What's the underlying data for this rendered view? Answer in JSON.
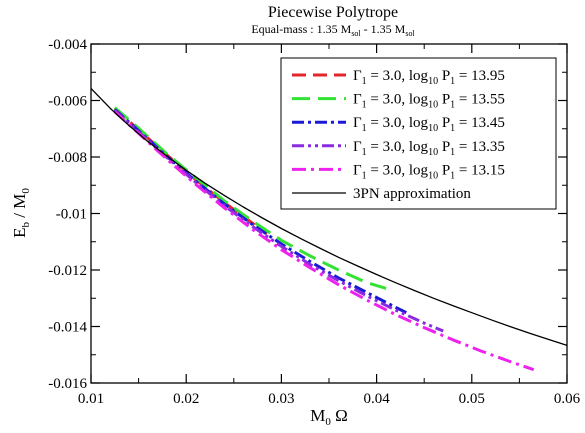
{
  "chart_data": {
    "type": "line",
    "title": "Piecewise Polytrope",
    "subtitle_prefix": "Equal-mass : 1.35 M",
    "subtitle_sub1": "sol",
    "subtitle_mid": " - 1.35 M",
    "subtitle_sub2": "sol",
    "xlabel_main": "M",
    "xlabel_sub": "0",
    "xlabel_tail": " Ω",
    "ylabel_main": "E",
    "ylabel_sub": "b",
    "ylabel_tail": " / M",
    "ylabel_sub2": "0",
    "xlim": [
      0.01,
      0.06
    ],
    "ylim": [
      -0.016,
      -0.004
    ],
    "xticks": [
      "0.01",
      "0.02",
      "0.03",
      "0.04",
      "0.05",
      "0.06"
    ],
    "yticks": [
      "-0.004",
      "-0.006",
      "-0.008",
      "-0.01",
      "-0.012",
      "-0.014",
      "-0.016"
    ],
    "xtick_values": [
      0.01,
      0.02,
      0.03,
      0.04,
      0.05,
      0.06
    ],
    "ytick_values": [
      -0.004,
      -0.006,
      -0.008,
      -0.01,
      -0.012,
      -0.014,
      -0.016
    ],
    "legend_position": "top-right",
    "series": [
      {
        "label_gamma": "Γ",
        "label_gamma_sub": "1",
        "label_mid": " = 3.0,  log",
        "label_log_sub": "10",
        "label_p": " P",
        "label_p_sub": "1",
        "label_value": " = 13.95",
        "color": "#e3262b",
        "dash": "14,7",
        "x": [
          0.0125,
          0.015,
          0.018,
          0.021,
          0.024,
          0.027,
          0.0285
        ],
        "y": [
          -0.00628,
          -0.00704,
          -0.00794,
          -0.0088,
          -0.00961,
          -0.01035,
          -0.01071
        ]
      },
      {
        "label_gamma": "Γ",
        "label_gamma_sub": "1",
        "label_mid": " = 3.0,  log",
        "label_log_sub": "10",
        "label_p": " P",
        "label_p_sub": "1",
        "label_value": " = 13.55",
        "color": "#33e333",
        "dash": "18,8",
        "x": [
          0.0125,
          0.015,
          0.018,
          0.021,
          0.024,
          0.027,
          0.03,
          0.033,
          0.036,
          0.039,
          0.041
        ],
        "y": [
          -0.00625,
          -0.00698,
          -0.0079,
          -0.00873,
          -0.00955,
          -0.01028,
          -0.01095,
          -0.0115,
          -0.012,
          -0.01245,
          -0.01265
        ]
      },
      {
        "label_gamma": "Γ",
        "label_gamma_sub": "1",
        "label_mid": " = 3.0,  log",
        "label_log_sub": "10",
        "label_p": " P",
        "label_p_sub": "1",
        "label_value": " = 13.45",
        "color": "#1a1ad6",
        "dash": "12,4,3,4",
        "x": [
          0.0125,
          0.015,
          0.018,
          0.021,
          0.024,
          0.027,
          0.03,
          0.033,
          0.036,
          0.039,
          0.042,
          0.0435
        ],
        "y": [
          -0.00632,
          -0.00707,
          -0.00799,
          -0.00885,
          -0.00966,
          -0.0104,
          -0.01108,
          -0.0117,
          -0.01228,
          -0.0128,
          -0.01332,
          -0.01357
        ]
      },
      {
        "label_gamma": "Γ",
        "label_gamma_sub": "1",
        "label_mid": " = 3.0,  log",
        "label_log_sub": "10",
        "label_p": " P",
        "label_p_sub": "1",
        "label_value": " = 13.35",
        "color": "#8a2be2",
        "dash": "12,4,3,4,3,4",
        "x": [
          0.0125,
          0.015,
          0.018,
          0.021,
          0.024,
          0.027,
          0.03,
          0.033,
          0.036,
          0.039,
          0.042,
          0.045,
          0.047
        ],
        "y": [
          -0.00635,
          -0.00711,
          -0.00803,
          -0.0089,
          -0.00972,
          -0.01047,
          -0.01116,
          -0.0118,
          -0.01238,
          -0.01292,
          -0.01342,
          -0.01388,
          -0.01416
        ]
      },
      {
        "label_gamma": "Γ",
        "label_gamma_sub": "1",
        "label_mid": " = 3.0,  log",
        "label_log_sub": "10",
        "label_p": " P",
        "label_p_sub": "1",
        "label_value": " = 13.15",
        "color": "#ee22ee",
        "dash": "14,5,3,5",
        "x": [
          0.0125,
          0.015,
          0.018,
          0.021,
          0.024,
          0.027,
          0.03,
          0.033,
          0.036,
          0.039,
          0.042,
          0.045,
          0.048,
          0.051,
          0.054,
          0.0565
        ],
        "y": [
          -0.0064,
          -0.00716,
          -0.00809,
          -0.00897,
          -0.0098,
          -0.01057,
          -0.01128,
          -0.01192,
          -0.01252,
          -0.01307,
          -0.01358,
          -0.01404,
          -0.01447,
          -0.01487,
          -0.01524,
          -0.01553
        ]
      },
      {
        "label_text": "3PN approximation",
        "color": "#000000",
        "dash": "",
        "x": [
          0.01,
          0.012,
          0.014,
          0.016,
          0.018,
          0.02,
          0.022,
          0.024,
          0.026,
          0.028,
          0.03,
          0.032,
          0.034,
          0.036,
          0.038,
          0.04,
          0.042,
          0.044,
          0.046,
          0.048,
          0.05,
          0.052,
          0.054,
          0.056,
          0.058,
          0.06
        ],
        "y": [
          -0.00557,
          -0.00627,
          -0.00689,
          -0.00746,
          -0.00798,
          -0.00847,
          -0.00893,
          -0.00936,
          -0.00977,
          -0.01016,
          -0.01053,
          -0.01088,
          -0.01122,
          -0.01155,
          -0.01186,
          -0.01216,
          -0.01245,
          -0.01273,
          -0.013,
          -0.01326,
          -0.01351,
          -0.01376,
          -0.014,
          -0.01423,
          -0.01445,
          -0.01467
        ]
      }
    ]
  }
}
